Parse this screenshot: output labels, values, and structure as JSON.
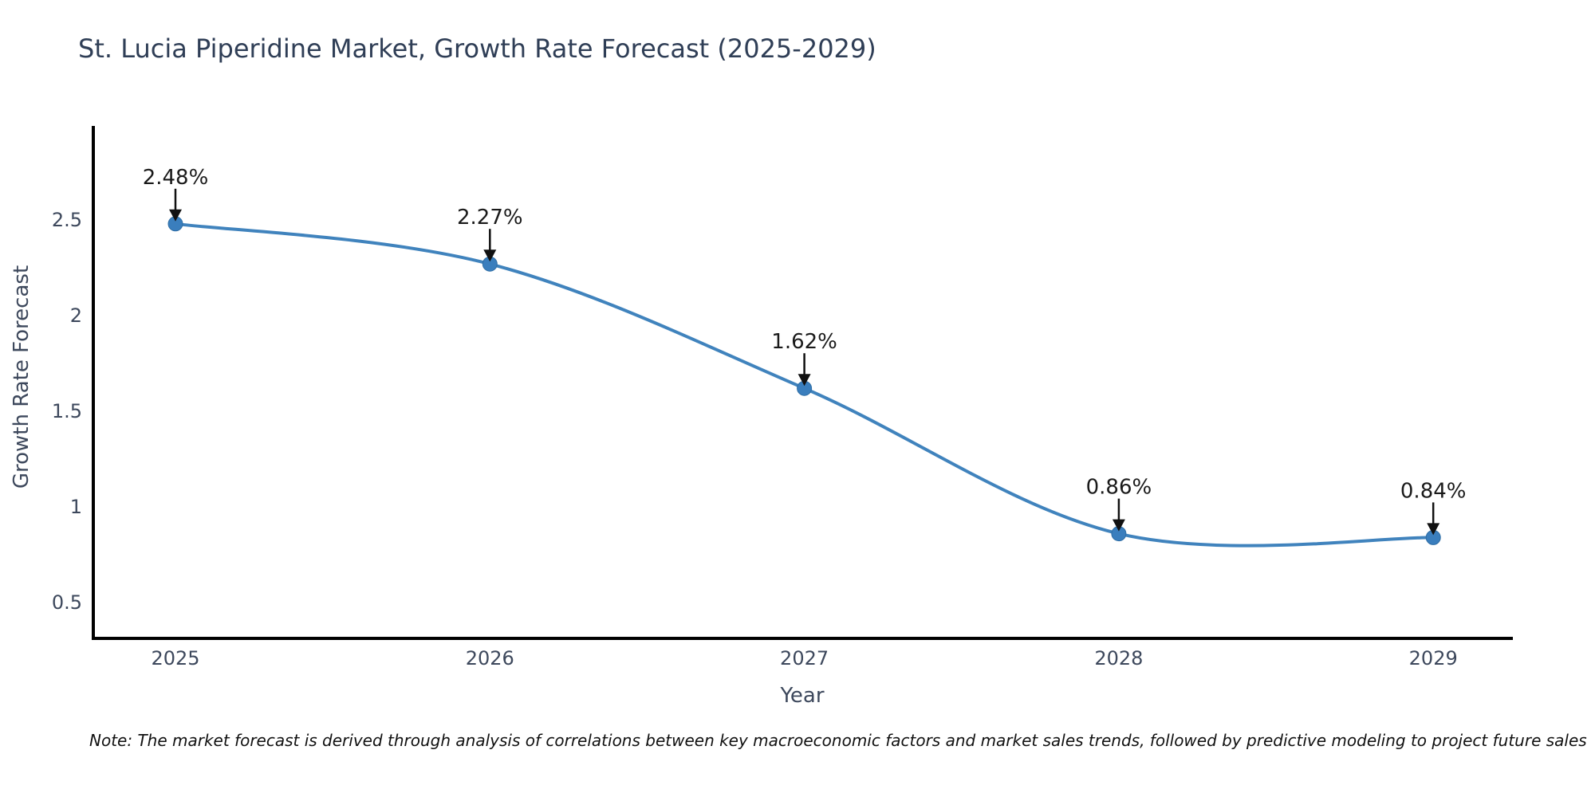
{
  "page": {
    "background": "#ffffff"
  },
  "header": {
    "title": "St. Lucia Piperidine Market, Growth Rate Forecast (2025-2029)"
  },
  "footnote": {
    "text": "Note: The market forecast is derived through analysis of correlations between key macroeconomic factors and market sales trends, followed by predictive modeling to project future sales"
  },
  "chart_data": {
    "type": "line",
    "title": "St. Lucia Piperidine Market, Growth Rate Forecast (2025-2029)",
    "xlabel": "Year",
    "ylabel": "Growth Rate Forecast",
    "categories": [
      "2025",
      "2026",
      "2027",
      "2028",
      "2029"
    ],
    "values": [
      2.48,
      2.27,
      1.62,
      0.86,
      0.84
    ],
    "point_labels": [
      "2.48%",
      "2.27%",
      "1.62%",
      "0.86%",
      "0.84%"
    ],
    "ytick_labels": [
      "0.5",
      "1",
      "1.5",
      "2",
      "2.5"
    ],
    "ytick_values": [
      0.5,
      1,
      1.5,
      2,
      2.5
    ],
    "ylim": [
      0.3,
      3.0
    ],
    "grid": false,
    "legend": null,
    "line_shape": "spline",
    "annotation_style": "value label above each point with downward black arrow",
    "colors": {
      "line": "#4083bd",
      "marker": "#3a7ebd",
      "marker_edge": "#2e6da4",
      "axis": "#000000",
      "title_text": "#2f3e56",
      "tick_text": "#3d485c",
      "axis_label_text": "#3d485c",
      "annotation_text": "#1a1a1a",
      "arrow": "#111111",
      "note_text": "#111111",
      "background": "#ffffff"
    }
  }
}
